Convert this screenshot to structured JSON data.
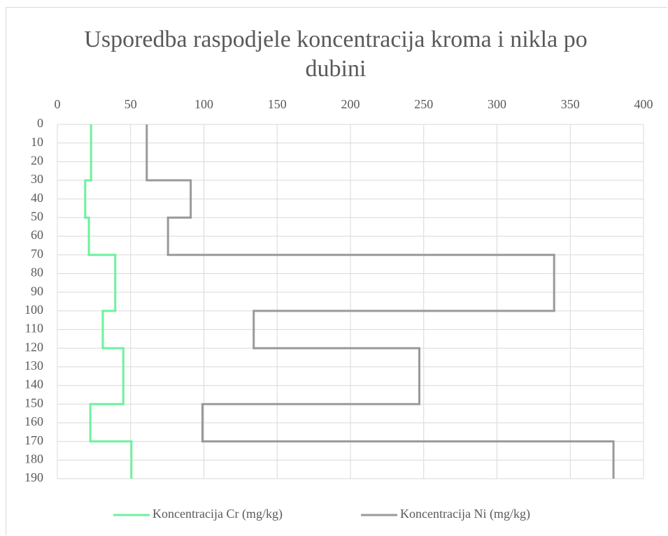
{
  "chart_data": {
    "type": "step",
    "title": "Usporedba raspodjele koncentracija kroma i nikla po dubini",
    "depth_bounds": [
      0,
      30,
      50,
      70,
      100,
      120,
      150,
      170,
      190
    ],
    "series": [
      {
        "name": "Koncentracija Cr (mg/kg)",
        "color": "#6cf29c",
        "values": [
          23,
          19,
          21.5,
          39.5,
          31,
          45,
          22.5,
          50.5
        ]
      },
      {
        "name": "Koncentracija Ni (mg/kg)",
        "color": "#999999",
        "values": [
          61,
          91,
          75.5,
          339,
          134,
          247,
          99,
          379.5
        ]
      }
    ],
    "xlim": [
      0,
      400
    ],
    "xticks": [
      0,
      50,
      100,
      150,
      200,
      250,
      300,
      350,
      400
    ],
    "ylim": [
      0,
      190
    ],
    "yticks": [
      0,
      10,
      20,
      30,
      40,
      50,
      60,
      70,
      80,
      90,
      100,
      110,
      120,
      130,
      140,
      150,
      160,
      170,
      180,
      190
    ],
    "y_reversed": true,
    "x_axis_position": "top",
    "grid": true,
    "legend": "bottom"
  }
}
